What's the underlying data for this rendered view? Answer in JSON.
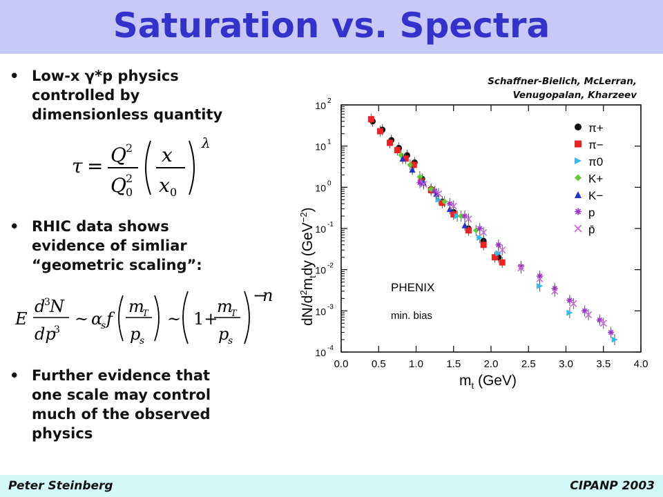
{
  "slide": {
    "title": "Saturation vs. Spectra",
    "footer_left": "Peter Steinberg",
    "footer_right": "CIPANP 2003",
    "bullets": [
      {
        "line1": "Low-x γ*p physics",
        "line2": "controlled by",
        "line3": "dimensionless quantity"
      },
      {
        "line1": "RHIC data shows",
        "line2": "evidence of simliar",
        "line3": "“geometric scaling”:"
      },
      {
        "line1": "Further evidence that",
        "line2": "one scale may control",
        "line3": "much of the observed",
        "line4": "physics"
      }
    ],
    "credit": {
      "line1": "Schaffner-Bielich, McLerran,",
      "line2": "Venugopalan, Kharzeev"
    },
    "colors": {
      "title": "#3333cc",
      "header_bg": "#c7c9f6",
      "footer_bg": "#d2faf9"
    }
  },
  "chart_data": {
    "type": "scatter",
    "xlabel": "m_t (GeV)",
    "ylabel": "dN/d²m_t dy (GeV⁻²)",
    "xlim": [
      0.0,
      4.0
    ],
    "ylim": [
      0.0001,
      100
    ],
    "yscale": "log",
    "x_ticks": [
      "0.0",
      "0.5",
      "1.0",
      "1.5",
      "2.0",
      "2.5",
      "3.0",
      "3.5",
      "4.0"
    ],
    "y_tick_values": [
      100,
      10,
      1,
      0.1,
      0.01,
      0.001,
      0.0001
    ],
    "y_tick_exps": [
      "2",
      "1",
      "0",
      "-1",
      "-2",
      "-3",
      "-4"
    ],
    "annotation_1": "PHENIX",
    "annotation_2": "min. bias",
    "legend": "top-right",
    "series": [
      {
        "name": "π+",
        "marker": "circle",
        "color": "#111111",
        "x": [
          0.42,
          0.55,
          0.67,
          0.77,
          0.88,
          0.98,
          1.08,
          1.2,
          1.35,
          1.5,
          1.7,
          1.9,
          2.1
        ],
        "y": [
          40,
          25,
          14,
          9,
          6,
          4,
          1.6,
          0.9,
          0.45,
          0.25,
          0.1,
          0.05,
          0.02
        ]
      },
      {
        "name": "π−",
        "marker": "square",
        "color": "#ee2222",
        "x": [
          0.4,
          0.52,
          0.65,
          0.75,
          0.86,
          0.97,
          1.07,
          1.2,
          1.35,
          1.5,
          1.7,
          1.9,
          2.05,
          2.15
        ],
        "y": [
          45,
          23,
          12,
          8,
          5,
          3.5,
          1.4,
          0.85,
          0.42,
          0.22,
          0.09,
          0.04,
          0.02,
          0.015
        ]
      },
      {
        "name": "π0",
        "marker": "triangle-right",
        "color": "#33bbee",
        "x": [
          1.1,
          1.3,
          1.55,
          1.85,
          2.1,
          2.65,
          3.05,
          3.65
        ],
        "y": [
          1.3,
          0.5,
          0.2,
          0.06,
          0.025,
          0.004,
          0.0009,
          0.0002
        ]
      },
      {
        "name": "K+",
        "marker": "diamond",
        "color": "#66cc33",
        "x": [
          0.8,
          0.92,
          1.05,
          1.2,
          1.38,
          1.6,
          1.8
        ],
        "y": [
          6,
          3.5,
          1.8,
          0.9,
          0.45,
          0.2,
          0.09
        ]
      },
      {
        "name": "K−",
        "marker": "triangle-up",
        "color": "#2233cc",
        "x": [
          0.82,
          0.95,
          1.1,
          1.27,
          1.45,
          1.65
        ],
        "y": [
          5,
          2.7,
          1.3,
          0.7,
          0.3,
          0.12
        ]
      },
      {
        "name": "p",
        "marker": "asterisk",
        "color": "#9933cc",
        "x": [
          1.05,
          1.25,
          1.45,
          1.65,
          1.85,
          2.1,
          2.4,
          2.65,
          2.85,
          3.05,
          3.25,
          3.45,
          3.6
        ],
        "y": [
          1.3,
          0.8,
          0.4,
          0.2,
          0.1,
          0.04,
          0.012,
          0.007,
          0.0035,
          0.0018,
          0.001,
          0.0006,
          0.0003
        ]
      },
      {
        "name": "p̄",
        "marker": "cross",
        "color": "#cc66dd",
        "x": [
          1.1,
          1.3,
          1.5,
          1.7,
          1.9,
          2.15,
          2.4,
          2.65,
          2.85,
          3.1,
          3.3,
          3.5
        ],
        "y": [
          1.2,
          0.7,
          0.35,
          0.17,
          0.08,
          0.03,
          0.011,
          0.006,
          0.003,
          0.0015,
          0.0008,
          0.0005
        ]
      }
    ]
  }
}
